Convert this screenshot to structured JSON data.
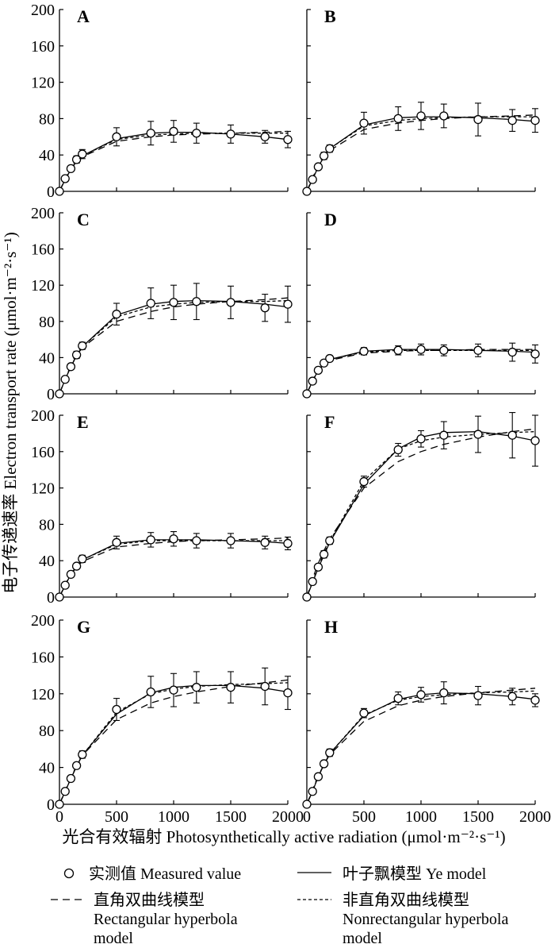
{
  "chart_data": {
    "type": "line",
    "xlabel": "光合有效辐射 Photosynthetically active radiation (μmol·m⁻²·s⁻¹)",
    "ylabel": "电子传递速率 Electron transport rate (μmol·m⁻²·s⁻¹)",
    "xlim": [
      0,
      2000
    ],
    "ylim": [
      0,
      200
    ],
    "x_ticks": [
      "0",
      "500",
      "1000",
      "1500",
      "2000"
    ],
    "y_ticks": [
      "0",
      "40",
      "80",
      "120",
      "160",
      "200"
    ],
    "legend": {
      "measured": "实测值 Measured value",
      "ye": "叶子飘模型 Ye model",
      "rect": "直角双曲线模型 Rectangular hyperbola model",
      "nonrect": "非直角双曲线模型 Nonrectangular hyperbola model"
    },
    "x": [
      0,
      50,
      100,
      150,
      200,
      500,
      800,
      1000,
      1200,
      1500,
      1800,
      2000
    ],
    "panels": [
      {
        "label": "A",
        "measured": [
          0,
          14,
          25,
          35,
          41,
          60,
          64,
          66,
          64,
          63,
          60,
          57
        ],
        "error": [
          0,
          2,
          3,
          4,
          5,
          10,
          13,
          12,
          11,
          10,
          7,
          9
        ],
        "ye": [
          0,
          13,
          24,
          33,
          39,
          58,
          64,
          65,
          65,
          63,
          60,
          57
        ],
        "rect": [
          0,
          14,
          25,
          33,
          38,
          55,
          60,
          62,
          63,
          64,
          65,
          66
        ],
        "nonrect": [
          0,
          13,
          24,
          33,
          39,
          57,
          62,
          63,
          64,
          64,
          64,
          64
        ]
      },
      {
        "label": "B",
        "measured": [
          0,
          13,
          27,
          39,
          47,
          75,
          80,
          83,
          83,
          79,
          78,
          78
        ],
        "error": [
          0,
          2,
          3,
          4,
          4,
          12,
          13,
          15,
          13,
          18,
          12,
          13
        ],
        "ye": [
          0,
          13,
          27,
          38,
          47,
          73,
          81,
          82,
          82,
          81,
          79,
          77
        ],
        "rect": [
          0,
          15,
          28,
          38,
          45,
          68,
          75,
          78,
          80,
          82,
          83,
          84
        ],
        "nonrect": [
          0,
          14,
          27,
          38,
          47,
          72,
          78,
          80,
          81,
          82,
          82,
          82
        ]
      },
      {
        "label": "C",
        "measured": [
          0,
          16,
          30,
          43,
          53,
          88,
          100,
          101,
          102,
          101,
          95,
          99
        ],
        "error": [
          0,
          2,
          3,
          4,
          4,
          12,
          17,
          19,
          20,
          18,
          15,
          20
        ],
        "ye": [
          0,
          16,
          30,
          42,
          52,
          87,
          99,
          102,
          103,
          102,
          99,
          96
        ],
        "rect": [
          0,
          17,
          31,
          42,
          51,
          80,
          91,
          96,
          99,
          102,
          104,
          106
        ],
        "nonrect": [
          0,
          16,
          30,
          42,
          52,
          85,
          96,
          99,
          101,
          102,
          102,
          103
        ]
      },
      {
        "label": "D",
        "measured": [
          0,
          14,
          26,
          34,
          39,
          47,
          48,
          49,
          48,
          48,
          46,
          44
        ],
        "error": [
          0,
          2,
          3,
          3,
          3,
          4,
          5,
          6,
          6,
          7,
          10,
          10
        ],
        "ye": [
          0,
          14,
          26,
          33,
          38,
          47,
          49,
          49,
          49,
          48,
          47,
          46
        ],
        "rect": [
          0,
          15,
          26,
          33,
          37,
          45,
          47,
          48,
          48,
          49,
          49,
          49
        ],
        "nonrect": [
          0,
          14,
          26,
          33,
          38,
          46,
          48,
          48,
          48,
          48,
          48,
          48
        ]
      },
      {
        "label": "E",
        "measured": [
          0,
          13,
          25,
          34,
          42,
          60,
          63,
          64,
          62,
          62,
          60,
          59
        ],
        "error": [
          0,
          2,
          3,
          3,
          4,
          7,
          8,
          8,
          8,
          8,
          7,
          7
        ],
        "ye": [
          0,
          13,
          25,
          34,
          41,
          59,
          63,
          63,
          63,
          62,
          61,
          59
        ],
        "rect": [
          0,
          14,
          25,
          33,
          39,
          55,
          59,
          61,
          62,
          63,
          64,
          65
        ],
        "nonrect": [
          0,
          13,
          25,
          34,
          41,
          58,
          62,
          62,
          62,
          62,
          62,
          62
        ]
      },
      {
        "label": "F",
        "measured": [
          0,
          17,
          33,
          47,
          62,
          127,
          162,
          174,
          178,
          179,
          178,
          172
        ],
        "error": [
          0,
          3,
          3,
          4,
          4,
          6,
          7,
          9,
          15,
          20,
          25,
          28
        ],
        "ye": [
          0,
          16,
          32,
          46,
          60,
          124,
          163,
          176,
          181,
          182,
          177,
          172
        ],
        "rect": [
          0,
          20,
          37,
          51,
          64,
          120,
          149,
          160,
          168,
          176,
          182,
          185
        ],
        "nonrect": [
          0,
          17,
          33,
          48,
          61,
          128,
          163,
          172,
          176,
          179,
          181,
          182
        ]
      },
      {
        "label": "G",
        "measured": [
          0,
          14,
          28,
          42,
          54,
          103,
          122,
          124,
          127,
          127,
          128,
          121
        ],
        "error": [
          0,
          2,
          3,
          3,
          4,
          12,
          17,
          18,
          17,
          17,
          20,
          18
        ],
        "ye": [
          0,
          14,
          28,
          41,
          53,
          98,
          121,
          127,
          129,
          129,
          126,
          122
        ],
        "rect": [
          0,
          15,
          29,
          42,
          53,
          92,
          110,
          117,
          122,
          128,
          132,
          135
        ],
        "nonrect": [
          0,
          14,
          28,
          41,
          53,
          100,
          120,
          125,
          128,
          130,
          131,
          132
        ]
      },
      {
        "label": "H",
        "measured": [
          0,
          14,
          30,
          44,
          56,
          99,
          115,
          119,
          121,
          118,
          117,
          113
        ],
        "error": [
          0,
          2,
          3,
          3,
          4,
          5,
          7,
          8,
          12,
          10,
          9,
          7
        ],
        "ye": [
          0,
          14,
          30,
          43,
          55,
          96,
          114,
          119,
          121,
          120,
          117,
          114
        ],
        "rect": [
          0,
          16,
          31,
          43,
          54,
          90,
          107,
          113,
          117,
          121,
          124,
          126
        ],
        "nonrect": [
          0,
          15,
          30,
          43,
          55,
          97,
          113,
          117,
          119,
          121,
          122,
          123
        ]
      }
    ]
  }
}
